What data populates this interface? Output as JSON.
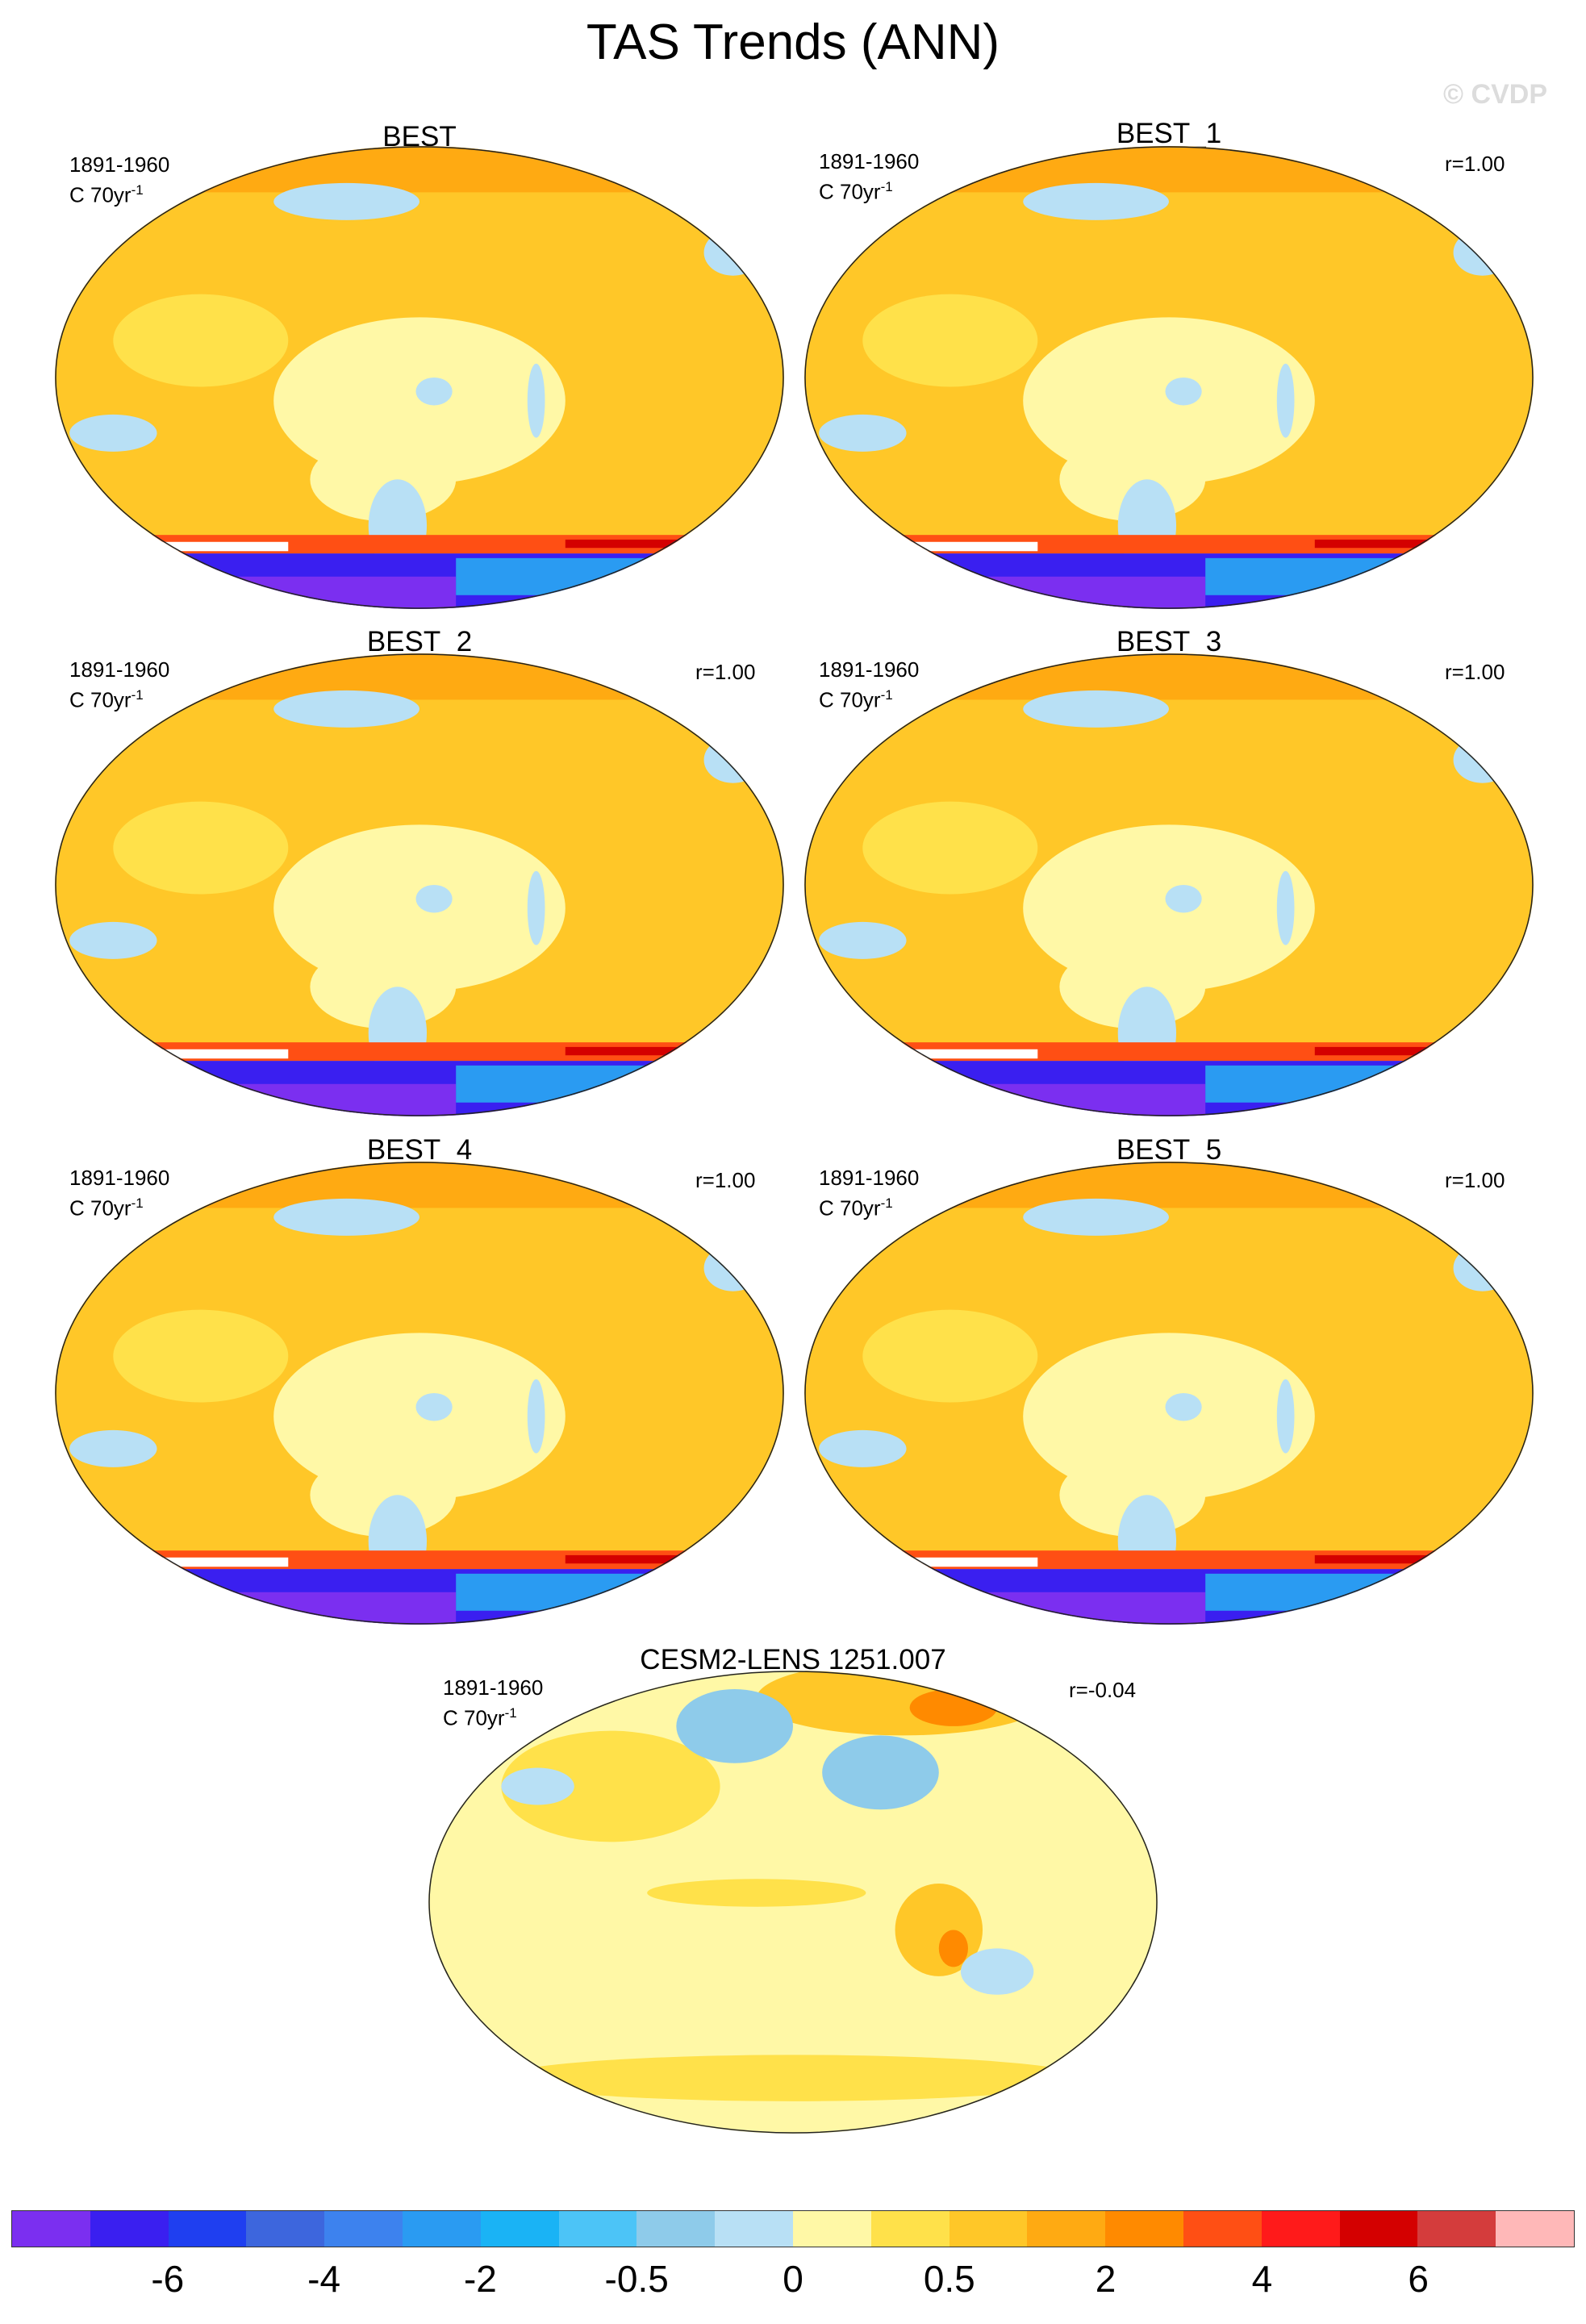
{
  "title": "TAS Trends (ANN)",
  "watermark": "© CVDP",
  "panels": [
    {
      "title": "BEST",
      "period": "1891-1960",
      "units": "C 70yr",
      "units_exp": "-1",
      "r": ""
    },
    {
      "title": "BEST_1",
      "period": "1891-1960",
      "units": "C 70yr",
      "units_exp": "-1",
      "r": "r=1.00"
    },
    {
      "title": "BEST_2",
      "period": "1891-1960",
      "units": "C 70yr",
      "units_exp": "-1",
      "r": "r=1.00"
    },
    {
      "title": "BEST_3",
      "period": "1891-1960",
      "units": "C 70yr",
      "units_exp": "-1",
      "r": "r=1.00"
    },
    {
      "title": "BEST_4",
      "period": "1891-1960",
      "units": "C 70yr",
      "units_exp": "-1",
      "r": "r=1.00"
    },
    {
      "title": "BEST_5",
      "period": "1891-1960",
      "units": "C 70yr",
      "units_exp": "-1",
      "r": "r=1.00"
    },
    {
      "title": "CESM2-LENS 1251.007",
      "period": "1891-1960",
      "units": "C 70yr",
      "units_exp": "-1",
      "r": "r=-0.04"
    }
  ],
  "colorbar": {
    "colors": [
      "#7b2ff0",
      "#3a1ff0",
      "#1f3ff0",
      "#3d66dd",
      "#3d82ee",
      "#2a9bf2",
      "#1ab3f5",
      "#4cc4f7",
      "#8ecbea",
      "#b8e0f5",
      "#fff8a6",
      "#ffe14a",
      "#ffc728",
      "#ffaa12",
      "#ff8a00",
      "#ff4f14",
      "#ff1a1a",
      "#d40000",
      "#d43c3c",
      "#ffb8b8"
    ],
    "tick_labels": [
      "-6",
      "-4",
      "-2",
      "-0.5",
      "0",
      "0.5",
      "2",
      "4",
      "6"
    ]
  }
}
